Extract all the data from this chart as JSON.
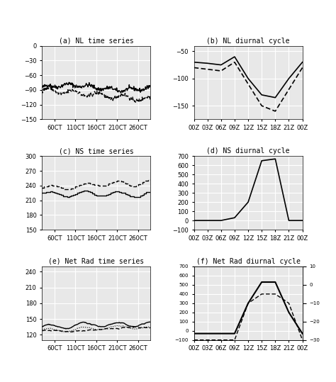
{
  "panel_a_title": "(a) NL time series",
  "panel_b_title": "(b) NL diurnal cycle",
  "panel_c_title": "(c) NS time series",
  "panel_d_title": "(d) NS diurnal cycle",
  "panel_e_title": "(e) Net Rad time series",
  "panel_f_title": "(f) Net Rad diurnal cycle",
  "ts_xticks": [
    60,
    110,
    160,
    210,
    260
  ],
  "ts_xticklabels": [
    "60CT",
    "110CT",
    "160CT",
    "210CT",
    "260CT"
  ],
  "ts_xlim": [
    30,
    290
  ],
  "diurnal_xticks": [
    0,
    3,
    6,
    9,
    12,
    15,
    18,
    21,
    24
  ],
  "diurnal_xticklabels": [
    "00Z",
    "03Z",
    "06Z",
    "09Z",
    "12Z",
    "15Z",
    "18Z",
    "21Z",
    "00Z"
  ],
  "diurnal_xlim": [
    0,
    24
  ],
  "nl_ts_ylim": [
    -150,
    0
  ],
  "nl_ts_yticks": [
    0,
    -30,
    -60,
    -90,
    -120,
    -150
  ],
  "nl_diurnal_ylim": [
    -175,
    -40
  ],
  "nl_diurnal_yticks": [
    -50,
    -100,
    -150
  ],
  "ns_ts_ylim": [
    150,
    300
  ],
  "ns_ts_yticks": [
    150,
    180,
    210,
    240,
    270,
    300
  ],
  "ns_diurnal_ylim": [
    -100,
    700
  ],
  "ns_diurnal_yticks": [
    -100,
    0,
    100,
    200,
    300,
    400,
    500,
    600,
    700
  ],
  "netrad_ts_ylim": [
    110,
    250
  ],
  "netrad_ts_yticks": [
    120,
    150,
    180,
    210,
    240
  ],
  "netrad_diurnal_ylim": [
    -100,
    700
  ],
  "netrad_diurnal_yticks": [
    -100,
    0,
    100,
    200,
    300,
    400,
    500,
    600,
    700
  ],
  "netrad_diurnal_ylim2": [
    -30,
    10
  ],
  "netrad_diurnal_yticks2": [
    -30,
    -20,
    -10,
    0,
    10
  ],
  "background": "#e8e8e8",
  "grid_color": "#ffffff"
}
